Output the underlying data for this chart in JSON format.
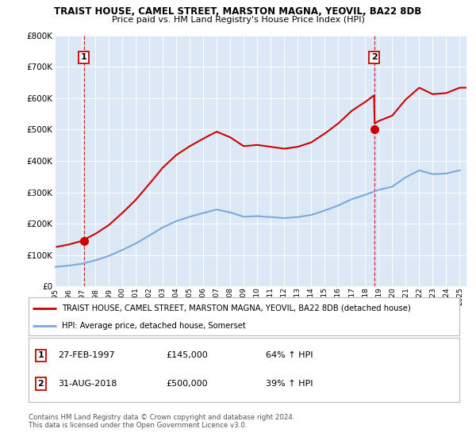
{
  "title": "TRAIST HOUSE, CAMEL STREET, MARSTON MAGNA, YEOVIL, BA22 8DB",
  "subtitle": "Price paid vs. HM Land Registry's House Price Index (HPI)",
  "red_label": "TRAIST HOUSE, CAMEL STREET, MARSTON MAGNA, YEOVIL, BA22 8DB (detached house)",
  "blue_label": "HPI: Average price, detached house, Somerset",
  "sale1_date": 1997.15,
  "sale1_price": 145000,
  "sale1_display": "27-FEB-1997",
  "sale1_hpi": "64% ↑ HPI",
  "sale2_date": 2018.67,
  "sale2_price": 500000,
  "sale2_display": "31-AUG-2018",
  "sale2_hpi": "39% ↑ HPI",
  "ylim": [
    0,
    800000
  ],
  "xlim": [
    1995.0,
    2025.5
  ],
  "yticks": [
    0,
    100000,
    200000,
    300000,
    400000,
    500000,
    600000,
    700000,
    800000
  ],
  "xticks": [
    1995,
    1996,
    1997,
    1998,
    1999,
    2000,
    2001,
    2002,
    2003,
    2004,
    2005,
    2006,
    2007,
    2008,
    2009,
    2010,
    2011,
    2012,
    2013,
    2014,
    2015,
    2016,
    2017,
    2018,
    2019,
    2020,
    2021,
    2022,
    2023,
    2024,
    2025
  ],
  "red_color": "#cc0000",
  "blue_color": "#7aaadd",
  "bg_plot": "#dce8f5",
  "bg_fig": "#ffffff",
  "grid_color": "#ffffff",
  "footnote": "Contains HM Land Registry data © Crown copyright and database right 2024.\nThis data is licensed under the Open Government Licence v3.0.",
  "years_blue": [
    1995,
    1996,
    1997,
    1998,
    1999,
    2000,
    2001,
    2002,
    2003,
    2004,
    2005,
    2006,
    2007,
    2008,
    2009,
    2010,
    2011,
    2012,
    2013,
    2014,
    2015,
    2016,
    2017,
    2018,
    2019,
    2020,
    2021,
    2022,
    2023,
    2024,
    2025
  ],
  "values_blue": [
    62000,
    66000,
    72000,
    83000,
    97000,
    116000,
    137000,
    162000,
    188000,
    208000,
    222000,
    234000,
    245000,
    236000,
    222000,
    224000,
    221000,
    218000,
    221000,
    228000,
    242000,
    258000,
    278000,
    292000,
    308000,
    318000,
    348000,
    370000,
    358000,
    360000,
    370000
  ],
  "hpi_at_sale1": 72000,
  "hpi_at_sale2": 292000
}
